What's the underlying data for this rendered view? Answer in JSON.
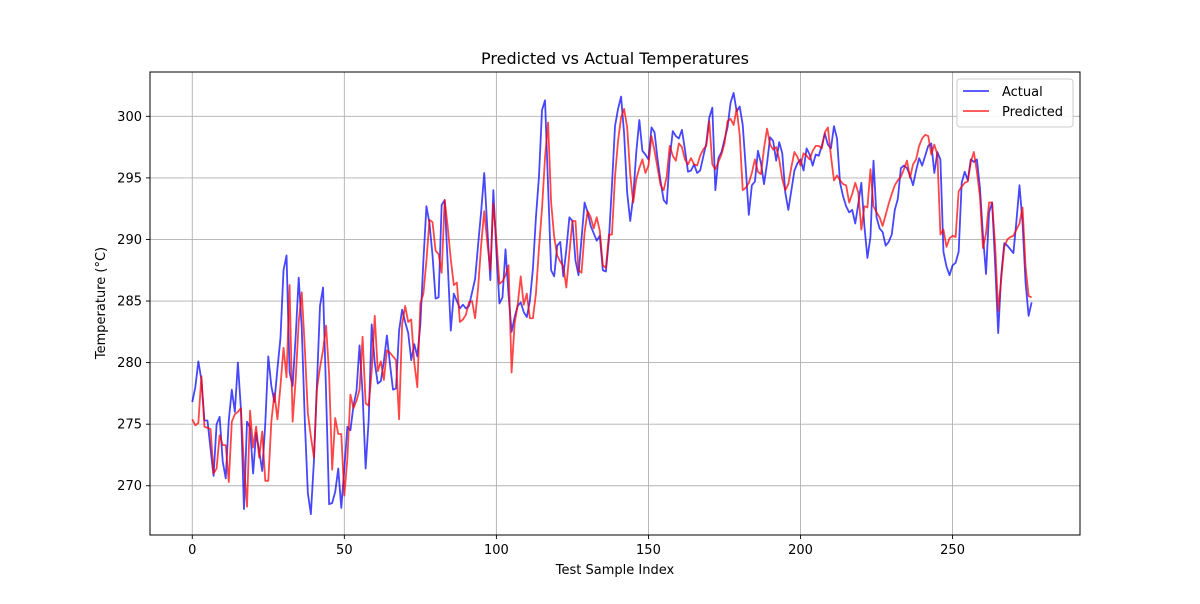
{
  "chart_data": {
    "type": "line",
    "title": "Predicted vs Actual Temperatures",
    "xlabel": "Test Sample Index",
    "ylabel": "Temperature (°C)",
    "xlim": [
      -13.9,
      291.9
    ],
    "ylim": [
      266.0,
      303.6
    ],
    "xticks": [
      0,
      50,
      100,
      150,
      200,
      250
    ],
    "yticks": [
      270,
      275,
      280,
      285,
      290,
      295,
      300
    ],
    "grid": true,
    "legend_position": "top-right",
    "series": [
      {
        "name": "Actual",
        "color": "#0000ff",
        "values": [
          276.8,
          278.0,
          280.1,
          278.6,
          275.3,
          275.3,
          273.0,
          270.8,
          275.0,
          275.6,
          272.0,
          270.6,
          275.3,
          277.8,
          276.0,
          280.0,
          276.2,
          268.1,
          275.2,
          274.7,
          271.0,
          274.3,
          272.8,
          271.2,
          275.0,
          280.5,
          278.1,
          276.8,
          279.5,
          282.0,
          287.5,
          288.7,
          279.2,
          278.1,
          282.1,
          286.9,
          282.8,
          275.3,
          269.4,
          267.7,
          272.0,
          278.3,
          284.6,
          286.1,
          277.5,
          268.5,
          268.6,
          269.5,
          271.4,
          268.2,
          271.4,
          274.8,
          274.5,
          276.5,
          277.7,
          281.4,
          277.5,
          271.4,
          275.3,
          283.1,
          280.0,
          278.3,
          278.5,
          280.1,
          282.2,
          279.9,
          277.8,
          277.9,
          282.6,
          284.3,
          283.3,
          282.4,
          280.2,
          281.5,
          280.5,
          283.1,
          288.3,
          292.7,
          291.3,
          288.7,
          285.2,
          285.3,
          292.8,
          293.2,
          288.0,
          282.6,
          285.6,
          285.0,
          284.4,
          284.7,
          284.4,
          284.6,
          285.7,
          286.8,
          289.6,
          292.3,
          295.4,
          291.0,
          286.7,
          294.0,
          289.0,
          284.8,
          285.3,
          289.2,
          285.5,
          282.5,
          283.7,
          284.6,
          284.9,
          284.1,
          283.7,
          285.0,
          287.6,
          291.8,
          295.1,
          300.5,
          301.3,
          294.3,
          287.5,
          287.0,
          289.5,
          289.8,
          287.0,
          289.2,
          291.8,
          291.5,
          288.3,
          287.1,
          290.1,
          293.0,
          292.2,
          291.1,
          290.5,
          289.9,
          290.3,
          287.5,
          287.4,
          290.0,
          294.4,
          299.2,
          300.6,
          301.6,
          298.6,
          293.8,
          291.5,
          293.5,
          297.1,
          299.7,
          297.2,
          296.9,
          296.5,
          299.1,
          298.7,
          296.5,
          294.7,
          293.2,
          292.9,
          296.6,
          298.8,
          298.4,
          298.2,
          298.9,
          297.3,
          295.5,
          295.6,
          296.1,
          295.4,
          295.6,
          296.7,
          297.8,
          299.9,
          300.7,
          294.0,
          296.6,
          297.1,
          298.1,
          299.1,
          301.1,
          301.9,
          300.4,
          300.8,
          299.3,
          295.8,
          292.0,
          294.4,
          294.7,
          297.2,
          296.2,
          294.5,
          296.2,
          298.3,
          298.0,
          296.4,
          297.9,
          297.0,
          293.8,
          292.4,
          294.0,
          295.6,
          296.2,
          296.5,
          295.6,
          297.4,
          296.9,
          296.0,
          296.9,
          296.8,
          297.6,
          298.6,
          297.7,
          297.4,
          299.2,
          298.2,
          294.6,
          293.5,
          292.7,
          292.2,
          292.4,
          291.3,
          292.9,
          294.6,
          291.1,
          288.5,
          290.2,
          296.4,
          291.8,
          290.9,
          290.6,
          289.5,
          289.8,
          290.4,
          292.4,
          293.3,
          295.8,
          296.0,
          295.8,
          295.2,
          294.4,
          295.6,
          296.6,
          296.0,
          296.8,
          297.6,
          297.8,
          295.4,
          297.1,
          296.5,
          289.0,
          287.8,
          287.1,
          287.9,
          288.1,
          289.0,
          294.6,
          295.5,
          294.8,
          296.5,
          296.3,
          296.5,
          294.2,
          290.3,
          287.2,
          292.2,
          293.0,
          288.0,
          282.4,
          287.1,
          289.7,
          289.5,
          289.2,
          288.9,
          291.5,
          294.4,
          291.4,
          286.5,
          283.8,
          284.9
        ]
      },
      {
        "name": "Predicted",
        "color": "#ff0000",
        "values": [
          275.4,
          274.9,
          275.1,
          278.9,
          274.8,
          274.7,
          274.6,
          271.0,
          271.4,
          274.1,
          273.3,
          273.3,
          270.3,
          275.2,
          275.8,
          276.0,
          276.3,
          271.6,
          268.3,
          276.1,
          273.1,
          274.8,
          272.3,
          274.4,
          270.4,
          270.4,
          275.2,
          277.5,
          275.4,
          278.1,
          281.2,
          278.8,
          286.3,
          275.2,
          278.6,
          283.3,
          285.7,
          281.2,
          275.9,
          274.0,
          272.3,
          277.9,
          279.6,
          281.0,
          283.0,
          279.0,
          271.3,
          275.5,
          274.2,
          274.2,
          269.2,
          272.2,
          277.4,
          276.3,
          276.9,
          277.8,
          282.1,
          276.7,
          276.5,
          279.3,
          283.8,
          279.3,
          280.1,
          278.6,
          281.0,
          280.8,
          280.5,
          280.2,
          275.4,
          283.1,
          284.6,
          283.3,
          283.5,
          280.0,
          278.0,
          284.8,
          285.6,
          288.3,
          291.6,
          291.4,
          289.1,
          288.8,
          287.3,
          293.2,
          291.0,
          288.4,
          286.3,
          286.5,
          283.3,
          283.5,
          283.9,
          284.9,
          285.0,
          283.6,
          286.1,
          289.6,
          292.3,
          289.8,
          287.5,
          292.9,
          290.0,
          286.4,
          286.6,
          287.1,
          287.9,
          279.2,
          283.2,
          284.7,
          287.0,
          284.7,
          285.6,
          283.6,
          283.6,
          285.6,
          289.3,
          292.5,
          296.7,
          299.5,
          293.0,
          290.2,
          288.7,
          288.2,
          287.8,
          286.1,
          288.9,
          291.5,
          291.5,
          287.5,
          287.3,
          290.6,
          292.3,
          291.8,
          290.9,
          291.8,
          290.7,
          287.9,
          287.7,
          290.4,
          290.4,
          295.1,
          298.0,
          299.9,
          300.6,
          299.1,
          295.3,
          293.0,
          294.9,
          295.8,
          296.5,
          295.4,
          296.0,
          298.4,
          297.2,
          295.8,
          294.4,
          294.0,
          295.1,
          297.6,
          296.8,
          296.4,
          297.8,
          297.5,
          296.5,
          296.1,
          296.6,
          296.1,
          296.0,
          296.8,
          297.3,
          297.6,
          299.6,
          296.1,
          295.7,
          296.3,
          296.9,
          297.8,
          299.6,
          299.8,
          299.3,
          300.6,
          298.5,
          294.0,
          294.2,
          294.6,
          295.4,
          296.5,
          295.5,
          295.3,
          297.4,
          299.0,
          297.7,
          297.3,
          297.5,
          296.5,
          294.9,
          294.0,
          294.5,
          295.9,
          297.1,
          296.7,
          296.0,
          297.0,
          296.8,
          296.5,
          297.2,
          297.6,
          297.6,
          297.4,
          298.7,
          299.1,
          296.8,
          294.8,
          295.2,
          294.8,
          294.5,
          294.4,
          293.0,
          293.7,
          294.6,
          293.8,
          290.8,
          292.7,
          292.6,
          295.7,
          292.7,
          292.2,
          291.8,
          291.1,
          292.0,
          292.9,
          293.7,
          294.4,
          294.8,
          295.1,
          295.7,
          296.4,
          295.0,
          296.1,
          296.5,
          297.6,
          298.2,
          298.5,
          298.4,
          296.9,
          297.7,
          296.9,
          290.4,
          290.8,
          289.4,
          290.1,
          290.3,
          290.2,
          293.9,
          294.3,
          294.6,
          294.7,
          296.3,
          297.1,
          295.5,
          293.5,
          289.3,
          290.5,
          293.0,
          293.0,
          289.5,
          284.2,
          286.8,
          289.4,
          290.0,
          290.2,
          290.3,
          290.8,
          291.3,
          292.6,
          287.8,
          285.4,
          285.3
        ]
      }
    ]
  }
}
